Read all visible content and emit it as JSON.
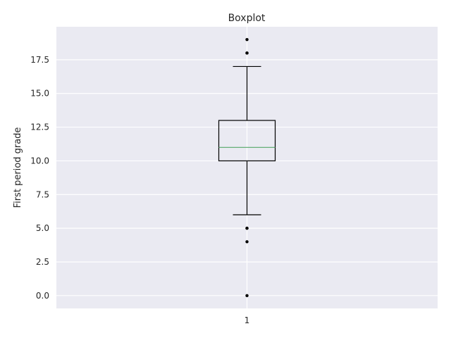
{
  "chart_data": {
    "type": "box",
    "title": "Boxplot",
    "xlabel": "",
    "ylabel": "First period grade",
    "categories": [
      "1"
    ],
    "ylim": [
      -0.95,
      19.95
    ],
    "yticks": [
      0.0,
      2.5,
      5.0,
      7.5,
      10.0,
      12.5,
      15.0,
      17.5
    ],
    "ytick_labels": [
      "0.0",
      "2.5",
      "5.0",
      "7.5",
      "10.0",
      "12.5",
      "15.0",
      "17.5"
    ],
    "grid": true,
    "boxes": [
      {
        "category": "1",
        "whisker_low": 6,
        "q1": 10,
        "median": 11,
        "q3": 13,
        "whisker_high": 17,
        "outliers": [
          0,
          4,
          5,
          5,
          18,
          18,
          19
        ]
      }
    ],
    "colors": {
      "background": "#eaeaf2",
      "grid": "#ffffff",
      "box": "#000000",
      "median": "#55a868",
      "outlier": "#000000"
    }
  }
}
